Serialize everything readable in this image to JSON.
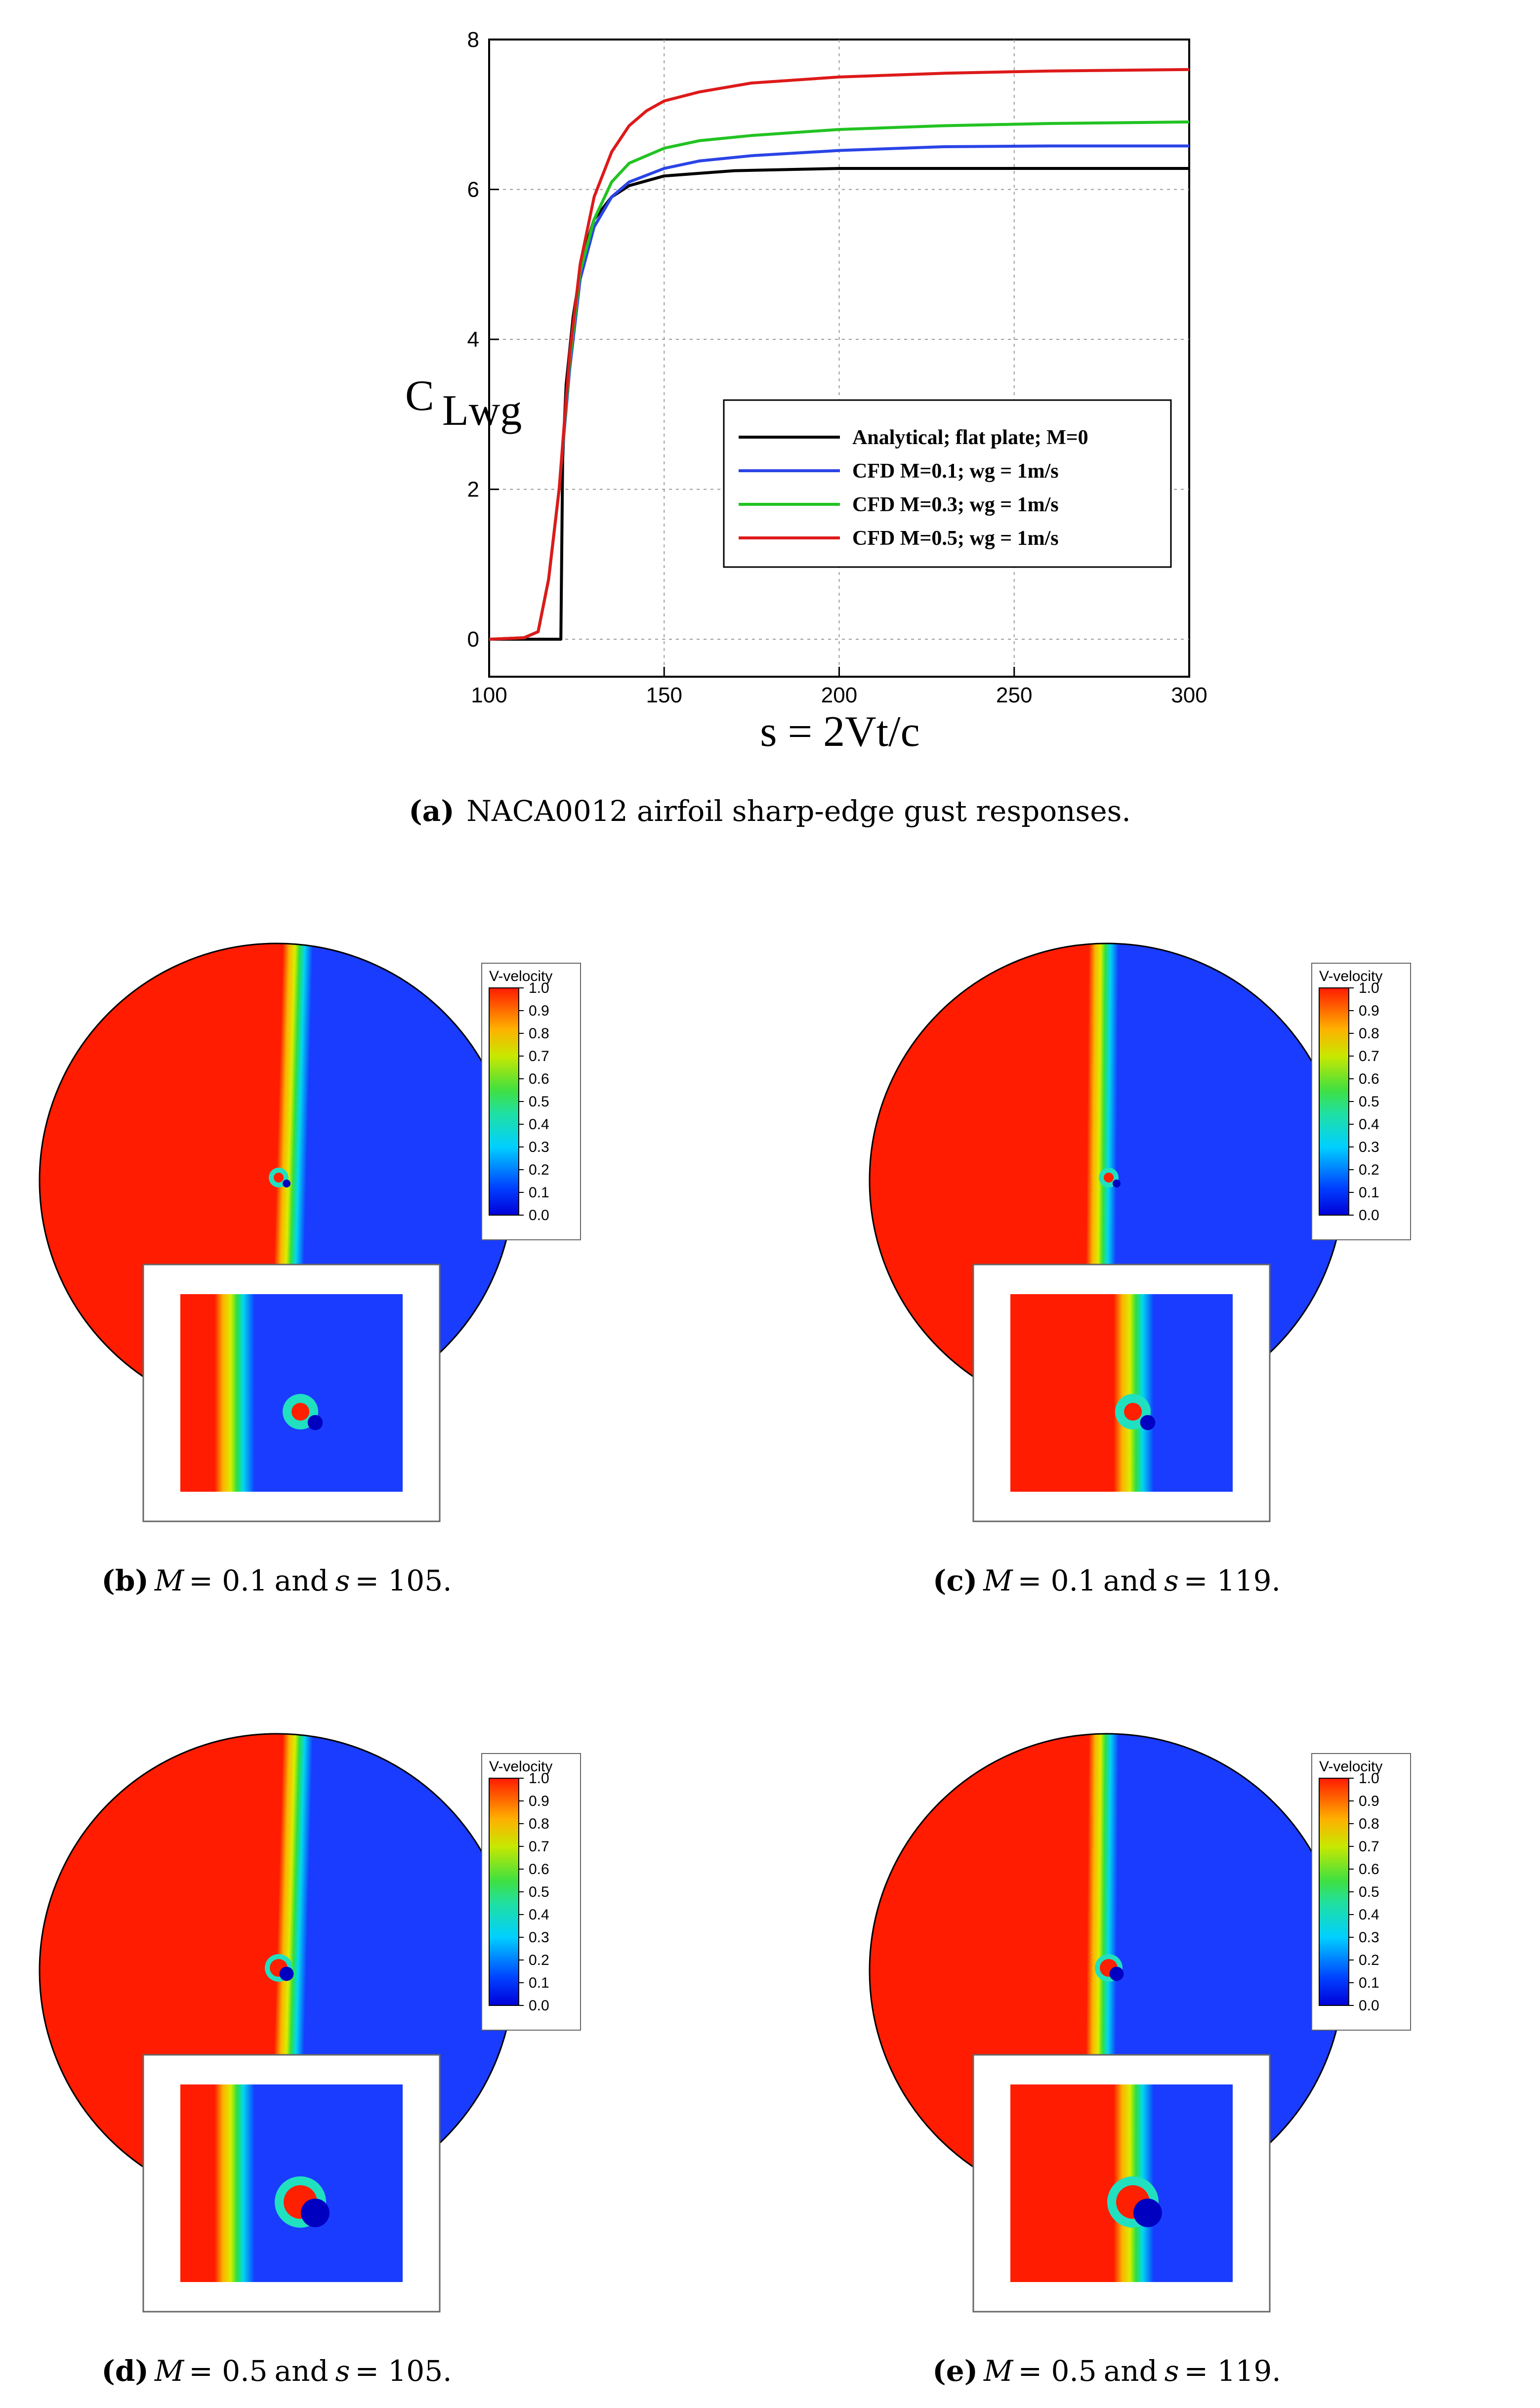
{
  "chart_data": {
    "type": "line",
    "xlabel": "s = 2Vt/c",
    "ylabel": "C",
    "ylabel_sub": "Lwg",
    "xlim": [
      100,
      300
    ],
    "ylim": [
      -0.5,
      8
    ],
    "x_ticks": [
      "100",
      "150",
      "200",
      "250",
      "300"
    ],
    "y_ticks": [
      "0",
      "2",
      "4",
      "6",
      "8"
    ],
    "grid": true,
    "legend_position": "center-right",
    "series": [
      {
        "name": "Analytical; flat plate; M=0",
        "color": "#000000",
        "x": [
          100,
          120.5,
          121,
          122,
          124,
          126,
          128,
          130,
          135,
          140,
          150,
          170,
          200,
          250,
          300
        ],
        "y": [
          0,
          0,
          2.4,
          3.4,
          4.3,
          4.9,
          5.3,
          5.6,
          5.9,
          6.05,
          6.18,
          6.25,
          6.28,
          6.28,
          6.28
        ]
      },
      {
        "name": "CFD M=0.1; wg = 1m/s",
        "color": "#2a44e6",
        "x": [
          100,
          110,
          114,
          117,
          120,
          123,
          126,
          130,
          135,
          140,
          150,
          160,
          175,
          200,
          230,
          260,
          300
        ],
        "y": [
          0,
          0.02,
          0.1,
          0.8,
          2.0,
          3.6,
          4.8,
          5.5,
          5.9,
          6.1,
          6.28,
          6.38,
          6.45,
          6.52,
          6.57,
          6.58,
          6.58
        ]
      },
      {
        "name": "CFD M=0.3; wg = 1m/s",
        "color": "#22c322",
        "x": [
          100,
          110,
          114,
          117,
          120,
          123,
          126,
          130,
          135,
          140,
          150,
          160,
          175,
          200,
          230,
          260,
          300
        ],
        "y": [
          0,
          0.02,
          0.1,
          0.8,
          2.0,
          3.7,
          4.9,
          5.6,
          6.1,
          6.35,
          6.55,
          6.65,
          6.72,
          6.8,
          6.85,
          6.88,
          6.9
        ]
      },
      {
        "name": "CFD M=0.5; wg = 1m/s",
        "color": "#dd1a1a",
        "x": [
          100,
          110,
          114,
          117,
          120,
          123,
          126,
          130,
          135,
          140,
          145,
          150,
          160,
          175,
          200,
          230,
          260,
          300
        ],
        "y": [
          0,
          0.02,
          0.1,
          0.8,
          2.0,
          3.8,
          5.0,
          5.9,
          6.5,
          6.85,
          7.05,
          7.18,
          7.3,
          7.42,
          7.5,
          7.55,
          7.58,
          7.6
        ]
      }
    ]
  },
  "figure": {
    "caption_a": {
      "label": "(a)",
      "text": "NACA0012 airfoil sharp-edge gust responses."
    },
    "panels": [
      {
        "label": "(b)",
        "m_var": "M",
        "m_val": "= 0.1",
        "and": "and",
        "s_var": "s",
        "s_val": "= 105."
      },
      {
        "label": "(c)",
        "m_var": "M",
        "m_val": "= 0.1",
        "and": "and",
        "s_var": "s",
        "s_val": "= 119."
      },
      {
        "label": "(d)",
        "m_var": "M",
        "m_val": "= 0.5",
        "and": "and",
        "s_var": "s",
        "s_val": "= 105."
      },
      {
        "label": "(e)",
        "m_var": "M",
        "m_val": "= 0.5",
        "and": "and",
        "s_var": "s",
        "s_val": "= 119."
      }
    ],
    "colorbar": {
      "title": "V-velocity",
      "ticks": [
        "1.0",
        "0.9",
        "0.8",
        "0.7",
        "0.6",
        "0.5",
        "0.4",
        "0.3",
        "0.2",
        "0.1",
        "0.0"
      ]
    }
  }
}
